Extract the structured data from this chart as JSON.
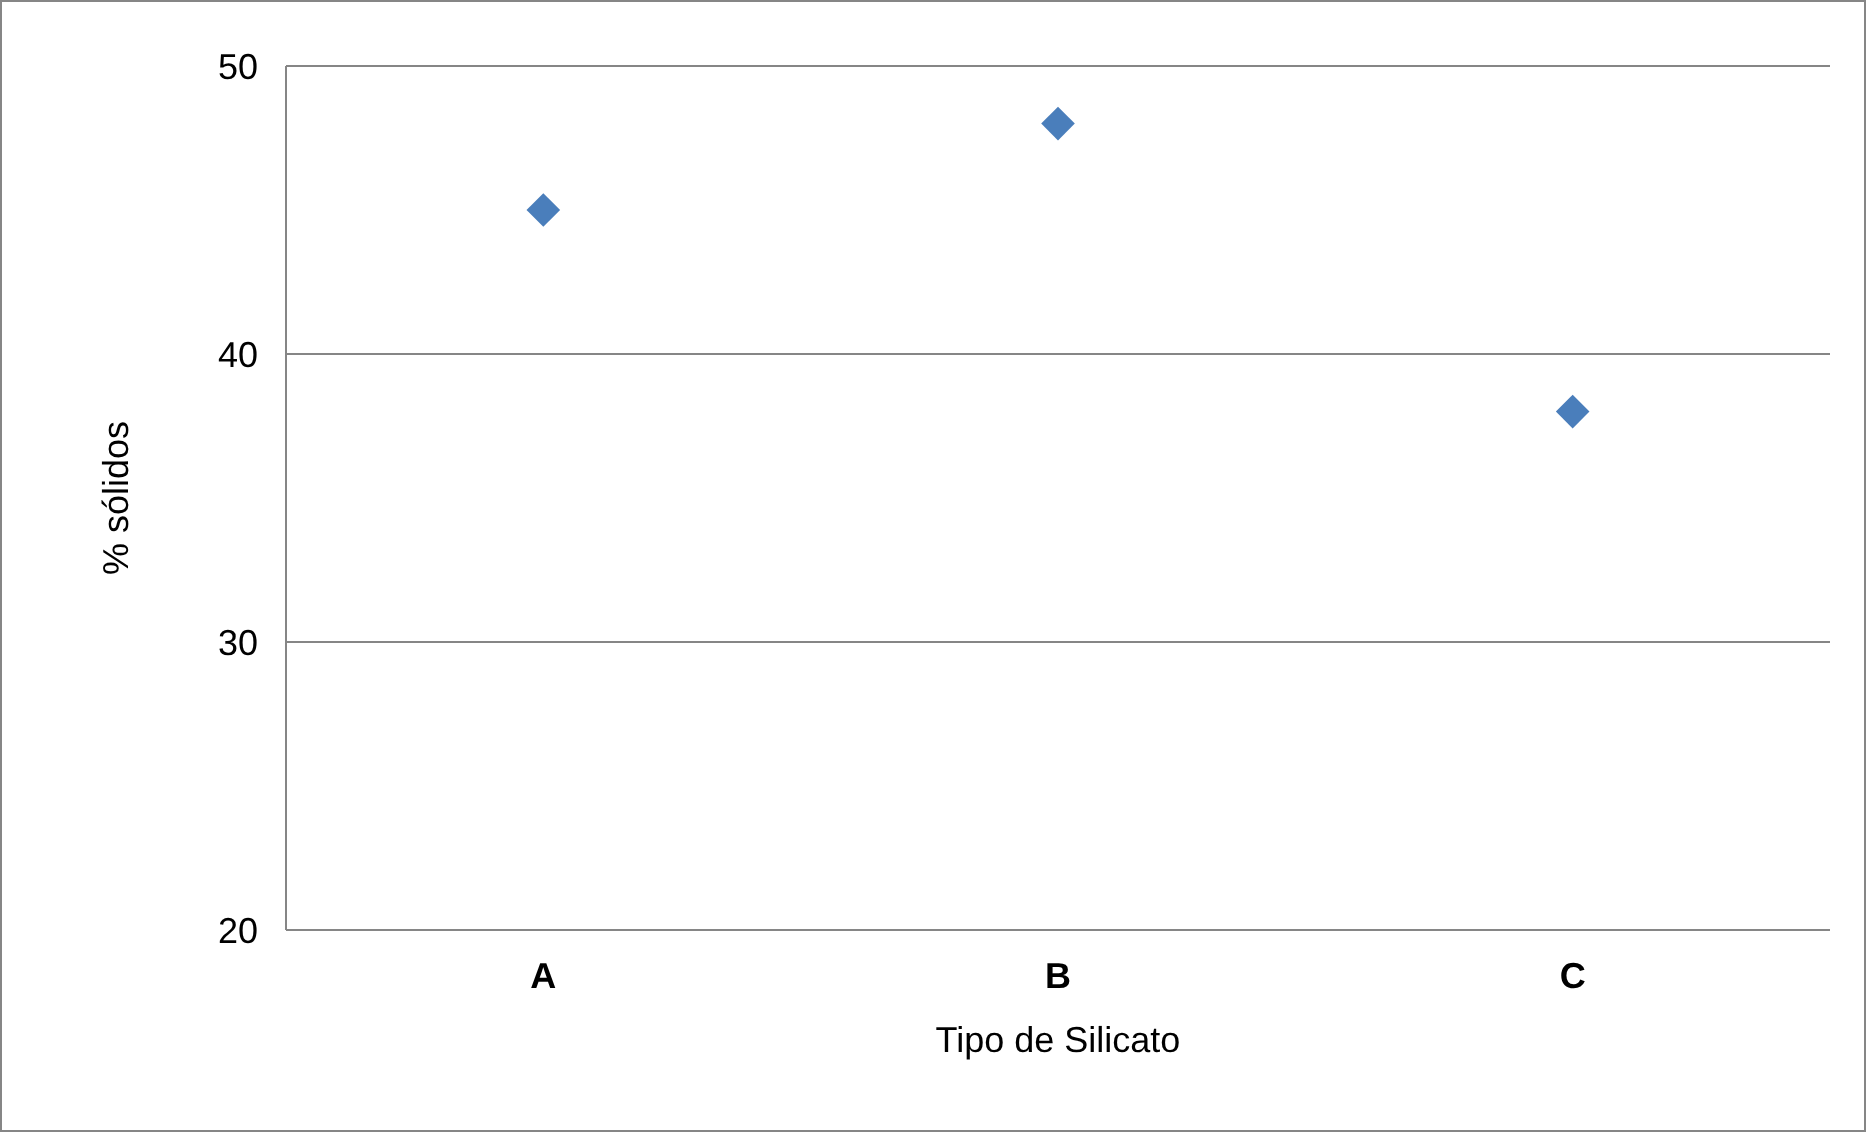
{
  "chart_data": {
    "type": "scatter",
    "xlabel": "Tipo de Silicato",
    "ylabel": "% sólidos",
    "categories": [
      "A",
      "B",
      "C"
    ],
    "series": [
      {
        "color": "#4a7ebb",
        "values": [
          45,
          48,
          38
        ]
      }
    ],
    "ylim": [
      20,
      50
    ],
    "yticks": [
      20,
      30,
      40,
      50
    ],
    "grid": "y",
    "marker": "diamond"
  }
}
